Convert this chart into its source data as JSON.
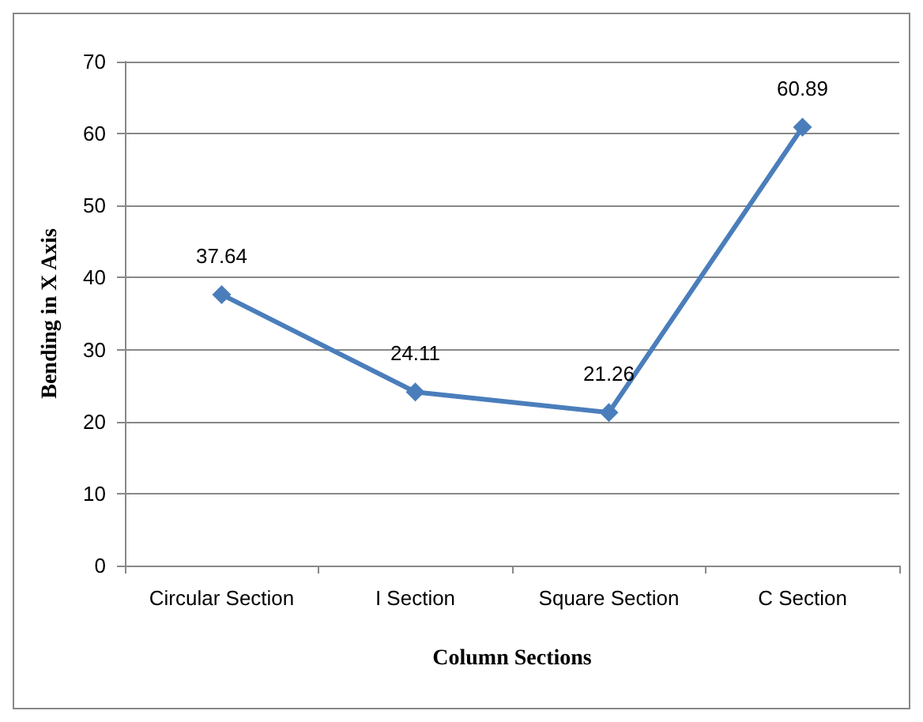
{
  "chart_data": {
    "type": "line",
    "xlabel": "Column Sections",
    "ylabel": "Bending in X Axis",
    "categories": [
      "Circular Section",
      "I Section",
      "Square Section",
      "C Section"
    ],
    "series": [
      {
        "color": "#4a7ebb",
        "values": [
          37.64,
          24.11,
          21.26,
          60.89
        ]
      }
    ],
    "ylim": [
      0,
      70
    ],
    "yticks": [
      0,
      10,
      20,
      30,
      40,
      50,
      60,
      70
    ],
    "grid": "y",
    "marker": "diamond",
    "line_style": "solid",
    "data_labels": true
  }
}
